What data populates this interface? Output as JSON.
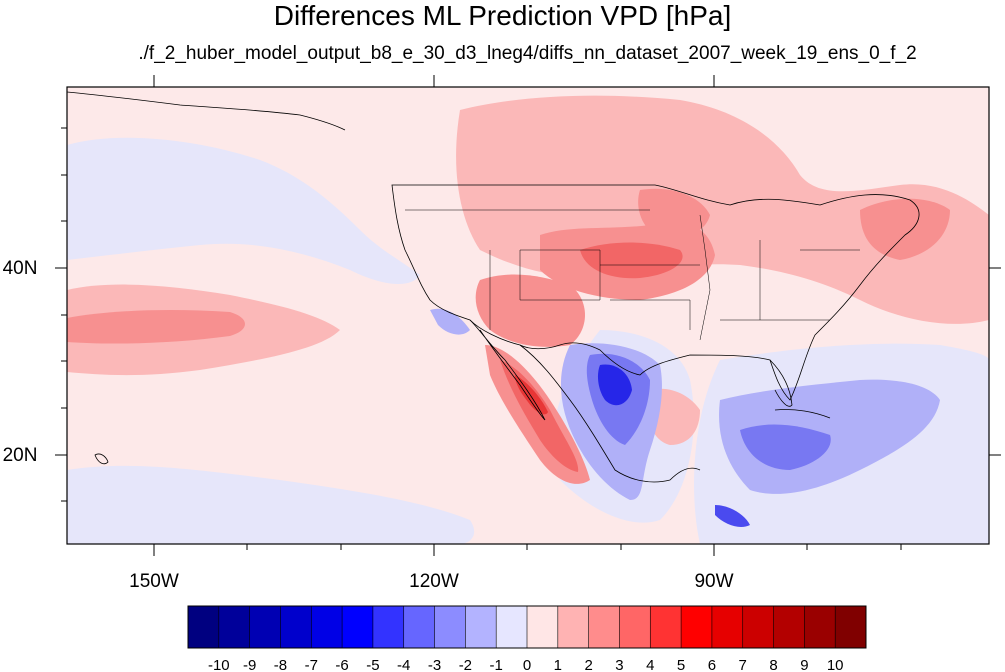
{
  "title": "Differences ML Prediction VPD [hPa]",
  "subtitle": "./f_2_huber_model_output_b8_e_30_d3_lneg4/diffs_nn_dataset_2007_week_19_ens_0_f_2",
  "lon_labels": [
    "150W",
    "120W",
    "90W"
  ],
  "lat_labels": [
    "40N",
    "20N"
  ],
  "colorbar": {
    "labels": [
      "-10",
      "-9",
      "-8",
      "-7",
      "-6",
      "-5",
      "-4",
      "-3",
      "-2",
      "-1",
      "0",
      "1",
      "2",
      "3",
      "4",
      "5",
      "6",
      "7",
      "8",
      "9",
      "10"
    ],
    "colors": [
      "#000080",
      "#00009a",
      "#0000b3",
      "#0000cc",
      "#0000e6",
      "#0000ff",
      "#3333ff",
      "#6666ff",
      "#8c8cff",
      "#b3b3ff",
      "#e6e6ff",
      "#ffe6e6",
      "#ffb3b3",
      "#ff8c8c",
      "#ff6666",
      "#ff3333",
      "#ff0000",
      "#e60000",
      "#cc0000",
      "#b30000",
      "#9a0000",
      "#800000"
    ]
  },
  "map_colors": {
    "background": "#fde9e9",
    "light_red": "#fbb8b8",
    "mid_red": "#f79090",
    "strong_red": "#f26666",
    "deep_red": "#e83636",
    "light_blue": "#e6e6fa",
    "mid_blue": "#b0b0f8",
    "blue": "#7878f2",
    "strong_blue": "#4a4aef",
    "deep_blue": "#2626e8"
  }
}
